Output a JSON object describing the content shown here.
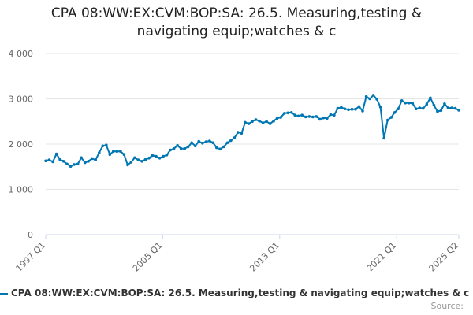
{
  "chart_data": {
    "type": "line",
    "title": "CPA 08:WW:EX:CVM:BOP:SA: 26.5. Measuring,testing & navigating equip;watches & c",
    "xlabel": "",
    "ylabel": "",
    "ylim": [
      0,
      4000
    ],
    "y_ticks": [
      "0",
      "1 000",
      "2 000",
      "3 000",
      "4 000"
    ],
    "x_tick_labels": [
      "1997 Q1",
      "2005 Q1",
      "2013 Q1",
      "2021 Q1",
      "2025 Q2"
    ],
    "grid": "horizontal",
    "legend_position": "bottom",
    "series": [
      {
        "name": "CPA 08:WW:EX:CVM:BOP:SA: 26.5. Measuring,testing & navigating equip;watches & c",
        "color": "#0077b3",
        "x_start": "1997 Q1",
        "x_end": "2025 Q2",
        "values": [
          1630,
          1650,
          1610,
          1780,
          1660,
          1620,
          1560,
          1510,
          1550,
          1560,
          1700,
          1590,
          1620,
          1680,
          1650,
          1810,
          1960,
          1980,
          1770,
          1840,
          1840,
          1840,
          1770,
          1540,
          1600,
          1700,
          1650,
          1620,
          1660,
          1690,
          1750,
          1730,
          1690,
          1730,
          1760,
          1870,
          1900,
          1970,
          1900,
          1900,
          1940,
          2030,
          1960,
          2060,
          2020,
          2050,
          2070,
          2030,
          1920,
          1890,
          1940,
          2030,
          2080,
          2140,
          2260,
          2240,
          2480,
          2450,
          2500,
          2540,
          2510,
          2470,
          2500,
          2450,
          2510,
          2570,
          2590,
          2680,
          2690,
          2700,
          2640,
          2620,
          2640,
          2600,
          2610,
          2600,
          2610,
          2550,
          2580,
          2570,
          2650,
          2640,
          2790,
          2810,
          2780,
          2760,
          2770,
          2770,
          2830,
          2730,
          3050,
          3000,
          3080,
          2990,
          2820,
          2130,
          2530,
          2590,
          2700,
          2780,
          2960,
          2910,
          2910,
          2900,
          2780,
          2800,
          2790,
          2880,
          3020,
          2860,
          2720,
          2740,
          2890,
          2800,
          2800,
          2790,
          2750
        ]
      }
    ]
  },
  "legend": {
    "label": "CPA 08:WW:EX:CVM:BOP:SA: 26.5. Measuring,testing & navigating equip;watches & c"
  },
  "source": {
    "label": "Source:"
  },
  "colors": {
    "series": "#0077b3",
    "grid": "#e6e6e6",
    "axis": "#ccd6eb"
  }
}
